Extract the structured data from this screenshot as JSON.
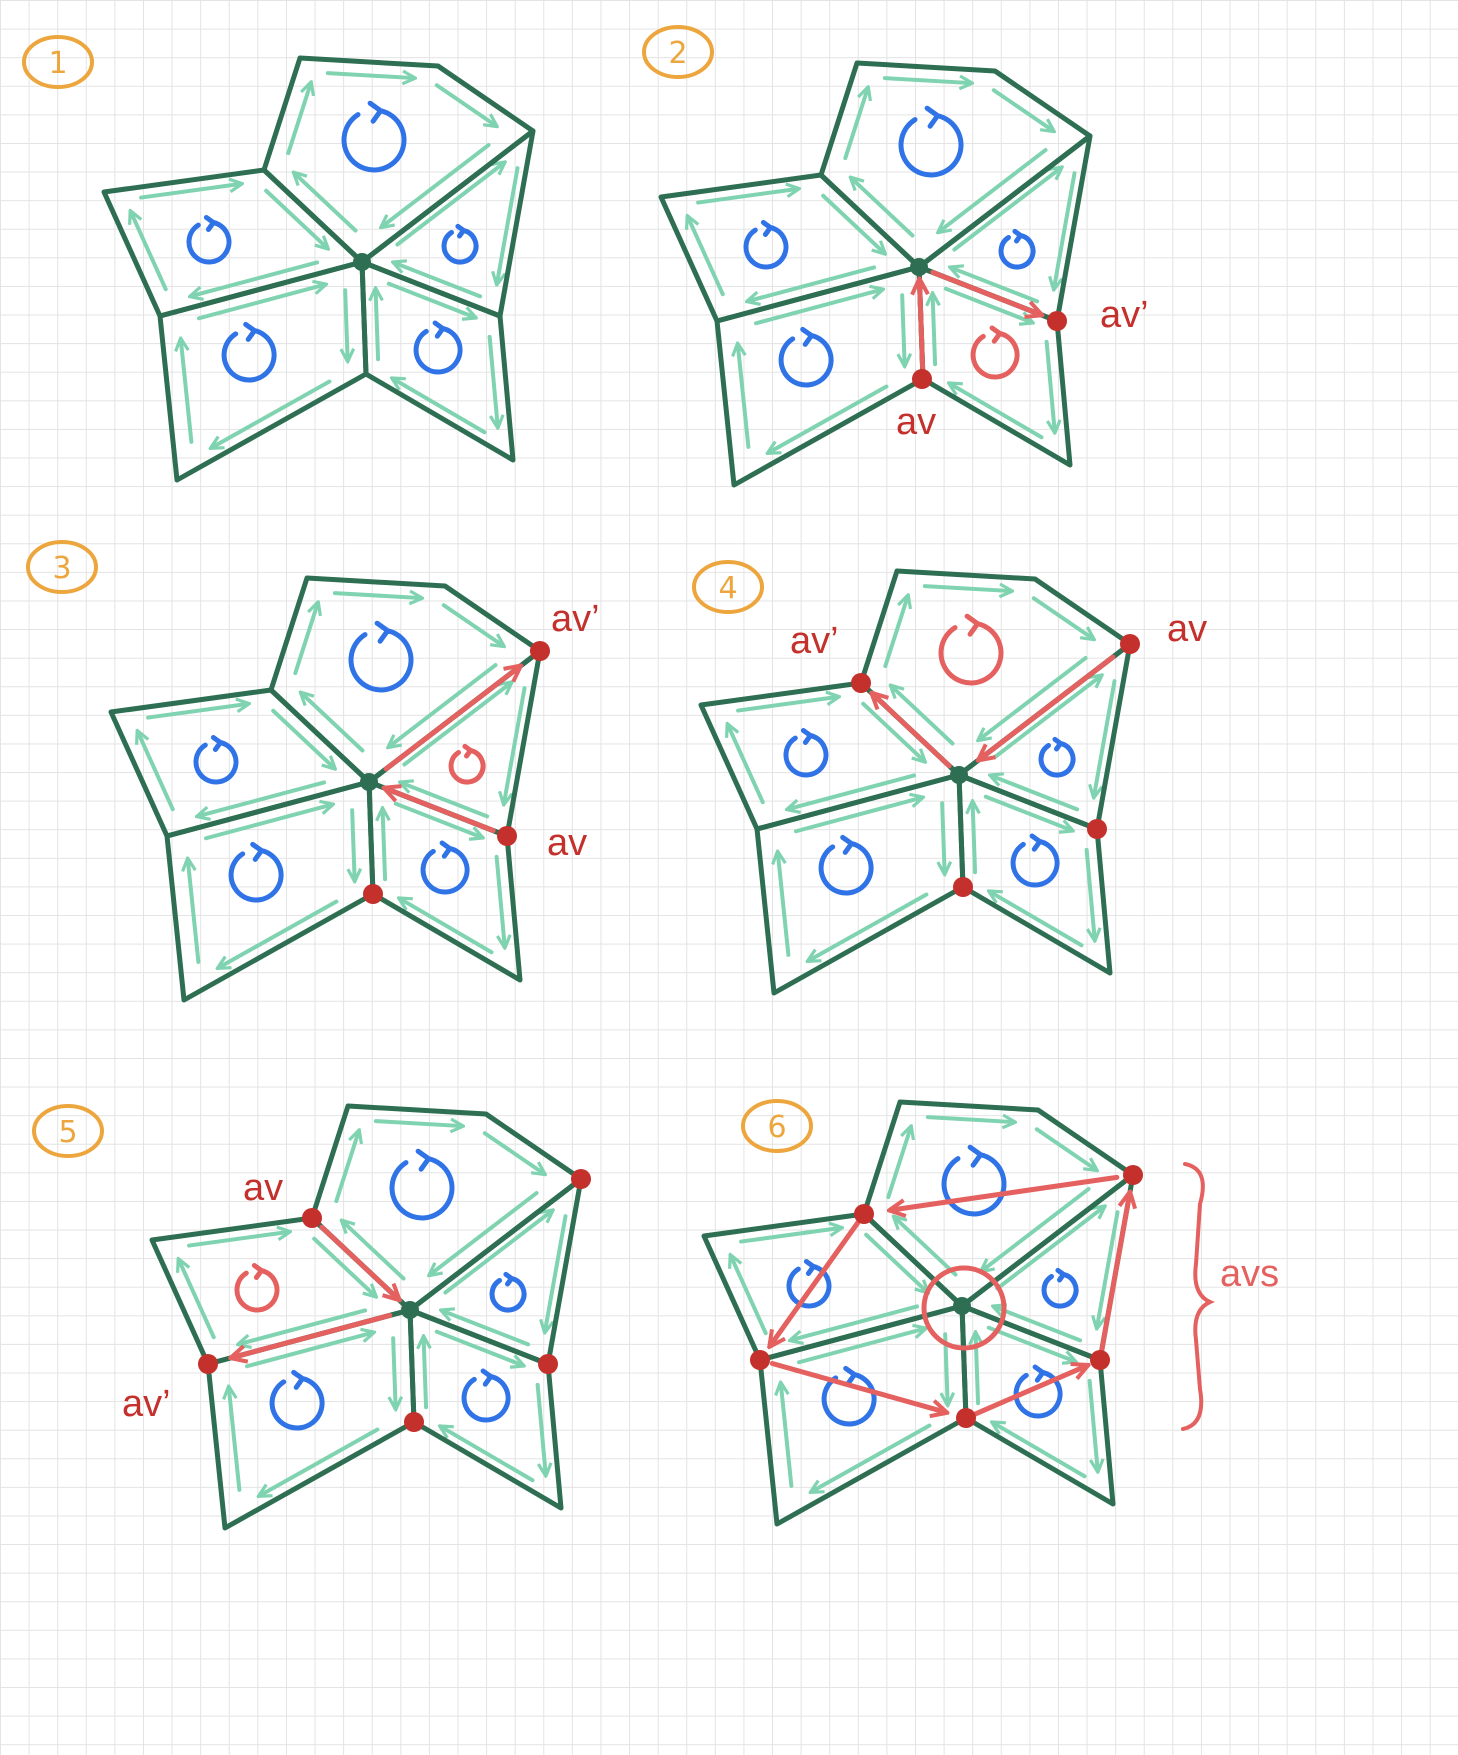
{
  "panels": [
    {
      "number": "1",
      "labels": {}
    },
    {
      "number": "2",
      "labels": {
        "av": "av",
        "av_prime": "av’"
      }
    },
    {
      "number": "3",
      "labels": {
        "av": "av",
        "av_prime": "av’"
      }
    },
    {
      "number": "4",
      "labels": {
        "av": "av",
        "av_prime": "av’"
      }
    },
    {
      "number": "5",
      "labels": {
        "av": "av",
        "av_prime": "av’"
      }
    },
    {
      "number": "6",
      "labels": {
        "avs": "avs"
      }
    }
  ],
  "colors": {
    "mesh_edge": "#2e6e52",
    "halfedge_arrow": "#7fd3b0",
    "face_orientation": "#2f73e6",
    "highlight": "#e46160",
    "vertex_marker": "#c4302c",
    "panel_number": "#eca63d"
  },
  "icons": {
    "face_orientation": "ccw-rotation-icon",
    "halfedge": "arrow-icon",
    "vertex": "dot-icon"
  }
}
